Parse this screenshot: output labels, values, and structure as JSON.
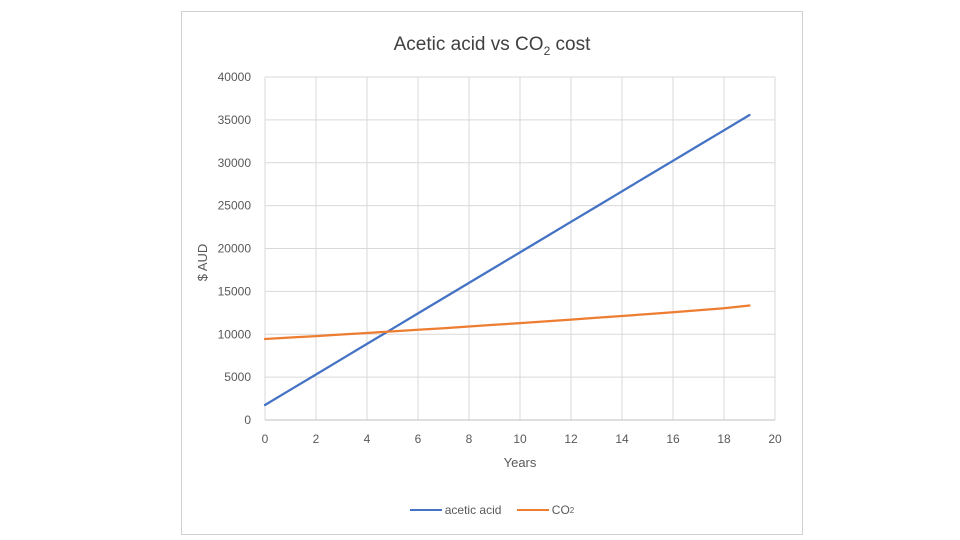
{
  "chart_data": {
    "type": "line",
    "title": "Acetic acid vs CO2 cost",
    "xlabel": "Years",
    "ylabel": "$ AUD",
    "xlim": [
      0,
      20
    ],
    "ylim": [
      0,
      40000
    ],
    "x_ticks": [
      0,
      2,
      4,
      6,
      8,
      10,
      12,
      14,
      16,
      18,
      20
    ],
    "y_ticks": [
      0,
      5000,
      10000,
      15000,
      20000,
      25000,
      30000,
      35000,
      40000
    ],
    "grid": true,
    "legend_position": "bottom",
    "x": [
      0,
      1,
      2,
      3,
      4,
      5,
      6,
      7,
      8,
      9,
      10,
      11,
      12,
      13,
      14,
      15,
      16,
      17,
      18,
      19
    ],
    "series": [
      {
        "name": "acetic acid",
        "color": "#4472c4",
        "values": [
          1750,
          3530,
          5310,
          7090,
          8870,
          10650,
          12430,
          14210,
          15990,
          17770,
          19550,
          21330,
          23110,
          24890,
          26670,
          28450,
          30230,
          32010,
          33790,
          35570
        ]
      },
      {
        "name": "CO2",
        "color": "#ed7d31",
        "values": [
          9450,
          9620,
          9790,
          9970,
          10150,
          10330,
          10520,
          10710,
          10900,
          11100,
          11300,
          11500,
          11710,
          11920,
          12130,
          12350,
          12570,
          12800,
          13030,
          13350
        ]
      }
    ]
  },
  "title": {
    "main": "Acetic acid vs CO",
    "sub": "2",
    "tail": " cost"
  },
  "legend": [
    {
      "label": "acetic acid",
      "sub": ""
    },
    {
      "label": "CO",
      "sub": "2"
    }
  ]
}
